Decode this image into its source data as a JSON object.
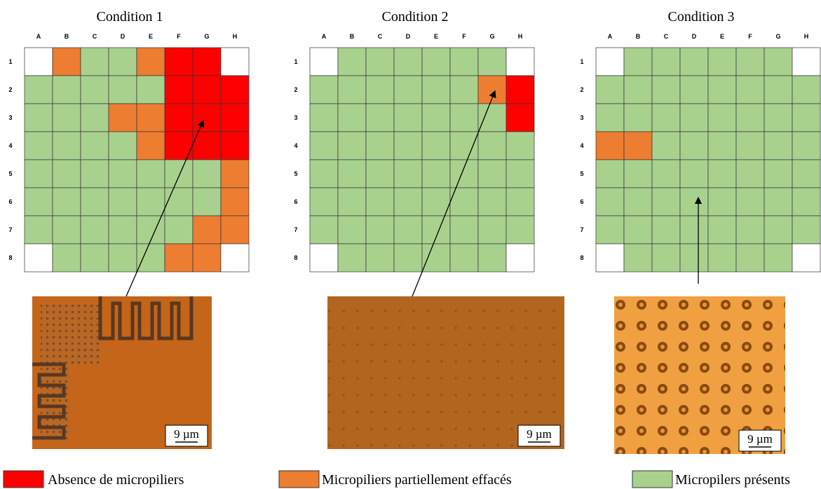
{
  "legend": [
    {
      "label": "Absence de micropiliers",
      "color": "#ff0000"
    },
    {
      "label": "Micropiliers partiellement effacés",
      "color": "#ed7d31"
    },
    {
      "label": "Micropilers présents",
      "color": "#a9d18e"
    }
  ],
  "columns": [
    "A",
    "B",
    "C",
    "D",
    "E",
    "F",
    "G",
    "H"
  ],
  "rows": [
    "1",
    "2",
    "3",
    "4",
    "5",
    "6",
    "7",
    "8"
  ],
  "conditions": [
    {
      "title": "Condition 1",
      "scale_bar": "9 µm",
      "cells": [
        [
          null,
          1,
          2,
          2,
          1,
          0,
          0,
          null
        ],
        [
          2,
          2,
          2,
          2,
          2,
          0,
          0,
          0
        ],
        [
          2,
          2,
          2,
          1,
          1,
          0,
          0,
          0
        ],
        [
          2,
          2,
          2,
          2,
          1,
          0,
          0,
          0
        ],
        [
          2,
          2,
          2,
          2,
          2,
          2,
          2,
          1
        ],
        [
          2,
          2,
          2,
          2,
          2,
          2,
          2,
          1
        ],
        [
          2,
          2,
          2,
          2,
          2,
          2,
          1,
          1
        ],
        [
          null,
          2,
          2,
          2,
          2,
          1,
          1,
          null
        ]
      ]
    },
    {
      "title": "Condition 2",
      "scale_bar": "9 µm",
      "cells": [
        [
          null,
          2,
          2,
          2,
          2,
          2,
          2,
          null
        ],
        [
          2,
          2,
          2,
          2,
          2,
          2,
          1,
          0
        ],
        [
          2,
          2,
          2,
          2,
          2,
          2,
          2,
          0
        ],
        [
          2,
          2,
          2,
          2,
          2,
          2,
          2,
          2
        ],
        [
          2,
          2,
          2,
          2,
          2,
          2,
          2,
          2
        ],
        [
          2,
          2,
          2,
          2,
          2,
          2,
          2,
          2
        ],
        [
          2,
          2,
          2,
          2,
          2,
          2,
          2,
          2
        ],
        [
          null,
          2,
          2,
          2,
          2,
          2,
          2,
          null
        ]
      ]
    },
    {
      "title": "Condition 3",
      "scale_bar": "9 µm",
      "cells": [
        [
          null,
          2,
          2,
          2,
          2,
          2,
          2,
          null
        ],
        [
          2,
          2,
          2,
          2,
          2,
          2,
          2,
          2
        ],
        [
          2,
          2,
          2,
          2,
          2,
          2,
          2,
          2
        ],
        [
          1,
          1,
          2,
          2,
          2,
          2,
          2,
          2
        ],
        [
          2,
          2,
          2,
          2,
          2,
          2,
          2,
          2
        ],
        [
          2,
          2,
          2,
          2,
          2,
          2,
          2,
          2
        ],
        [
          2,
          2,
          2,
          2,
          2,
          2,
          2,
          2
        ],
        [
          null,
          2,
          2,
          2,
          2,
          2,
          2,
          null
        ]
      ]
    }
  ]
}
